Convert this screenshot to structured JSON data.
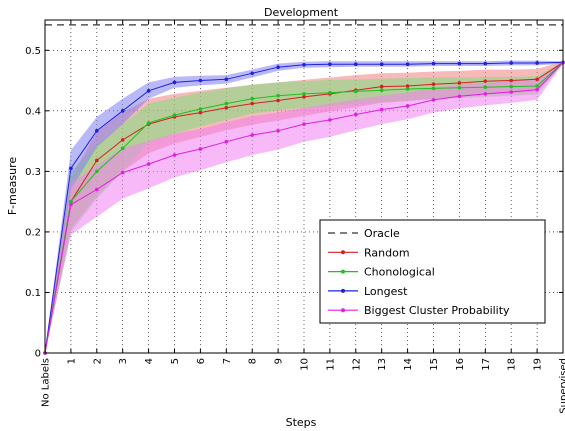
{
  "chart_data": {
    "type": "line",
    "title": "Development",
    "xlabel": "Steps",
    "ylabel": "F-measure",
    "categories": [
      "No Labels",
      "1",
      "2",
      "3",
      "4",
      "5",
      "6",
      "7",
      "8",
      "9",
      "10",
      "11",
      "12",
      "13",
      "14",
      "15",
      "16",
      "17",
      "18",
      "19",
      "Supervised"
    ],
    "yticks": [
      0,
      0.1,
      0.2,
      0.3,
      0.4,
      0.5
    ],
    "ytick_labels": [
      "0",
      "0.1",
      "0.2",
      "0.3",
      "0.4",
      "0.5"
    ],
    "ylim": [
      0,
      0.55
    ],
    "grid": true,
    "legend_position": "bottom-right",
    "oracle": {
      "name": "Oracle",
      "value": 0.542,
      "color": "#333333"
    },
    "series": [
      {
        "name": "Random",
        "color": "#d62020",
        "band_color": "#f08080",
        "values": [
          0,
          0.25,
          0.318,
          0.352,
          0.378,
          0.39,
          0.397,
          0.405,
          0.412,
          0.417,
          0.423,
          0.428,
          0.434,
          0.44,
          0.441,
          0.444,
          0.446,
          0.449,
          0.45,
          0.452,
          0.48
        ],
        "lower": [
          0,
          0.205,
          0.26,
          0.3,
          0.33,
          0.346,
          0.357,
          0.368,
          0.377,
          0.384,
          0.392,
          0.399,
          0.406,
          0.413,
          0.416,
          0.42,
          0.423,
          0.427,
          0.429,
          0.432,
          0.478
        ],
        "upper": [
          0,
          0.29,
          0.365,
          0.398,
          0.42,
          0.428,
          0.433,
          0.438,
          0.443,
          0.447,
          0.451,
          0.455,
          0.459,
          0.462,
          0.463,
          0.465,
          0.466,
          0.468,
          0.468,
          0.469,
          0.482
        ]
      },
      {
        "name": "Chonological",
        "color": "#20c020",
        "band_color": "#80e080",
        "values": [
          0,
          0.25,
          0.3,
          0.338,
          0.38,
          0.393,
          0.403,
          0.412,
          0.42,
          0.425,
          0.428,
          0.43,
          0.432,
          0.434,
          0.436,
          0.437,
          0.438,
          0.439,
          0.44,
          0.441,
          0.48
        ],
        "lower": [
          0,
          0.2,
          0.255,
          0.3,
          0.348,
          0.362,
          0.374,
          0.385,
          0.395,
          0.401,
          0.405,
          0.408,
          0.411,
          0.414,
          0.417,
          0.419,
          0.421,
          0.423,
          0.425,
          0.427,
          0.478
        ],
        "upper": [
          0,
          0.3,
          0.345,
          0.378,
          0.412,
          0.422,
          0.43,
          0.437,
          0.443,
          0.447,
          0.449,
          0.451,
          0.452,
          0.453,
          0.454,
          0.455,
          0.455,
          0.456,
          0.456,
          0.457,
          0.482
        ]
      },
      {
        "name": "Longest",
        "color": "#2020e0",
        "band_color": "#8080f0",
        "values": [
          0,
          0.305,
          0.367,
          0.4,
          0.433,
          0.447,
          0.45,
          0.452,
          0.462,
          0.472,
          0.476,
          0.477,
          0.477,
          0.477,
          0.477,
          0.478,
          0.478,
          0.478,
          0.479,
          0.479,
          0.48
        ],
        "lower": [
          0,
          0.27,
          0.34,
          0.378,
          0.42,
          0.438,
          0.442,
          0.445,
          0.455,
          0.466,
          0.471,
          0.472,
          0.473,
          0.473,
          0.473,
          0.474,
          0.474,
          0.474,
          0.475,
          0.475,
          0.478
        ],
        "upper": [
          0,
          0.335,
          0.39,
          0.42,
          0.447,
          0.456,
          0.458,
          0.459,
          0.468,
          0.478,
          0.481,
          0.482,
          0.482,
          0.482,
          0.482,
          0.482,
          0.482,
          0.482,
          0.483,
          0.483,
          0.482
        ]
      },
      {
        "name": "Biggest Cluster Probability",
        "color": "#e020e0",
        "band_color": "#f080f0",
        "values": [
          0,
          0.245,
          0.27,
          0.298,
          0.312,
          0.327,
          0.337,
          0.349,
          0.36,
          0.367,
          0.378,
          0.385,
          0.394,
          0.402,
          0.408,
          0.418,
          0.424,
          0.428,
          0.431,
          0.435,
          0.48
        ],
        "lower": [
          0,
          0.195,
          0.225,
          0.255,
          0.272,
          0.29,
          0.302,
          0.315,
          0.327,
          0.336,
          0.349,
          0.357,
          0.368,
          0.378,
          0.386,
          0.397,
          0.404,
          0.409,
          0.413,
          0.418,
          0.478
        ],
        "upper": [
          0,
          0.28,
          0.31,
          0.338,
          0.35,
          0.362,
          0.37,
          0.381,
          0.391,
          0.397,
          0.405,
          0.412,
          0.419,
          0.425,
          0.43,
          0.438,
          0.443,
          0.446,
          0.449,
          0.452,
          0.482
        ]
      }
    ]
  }
}
